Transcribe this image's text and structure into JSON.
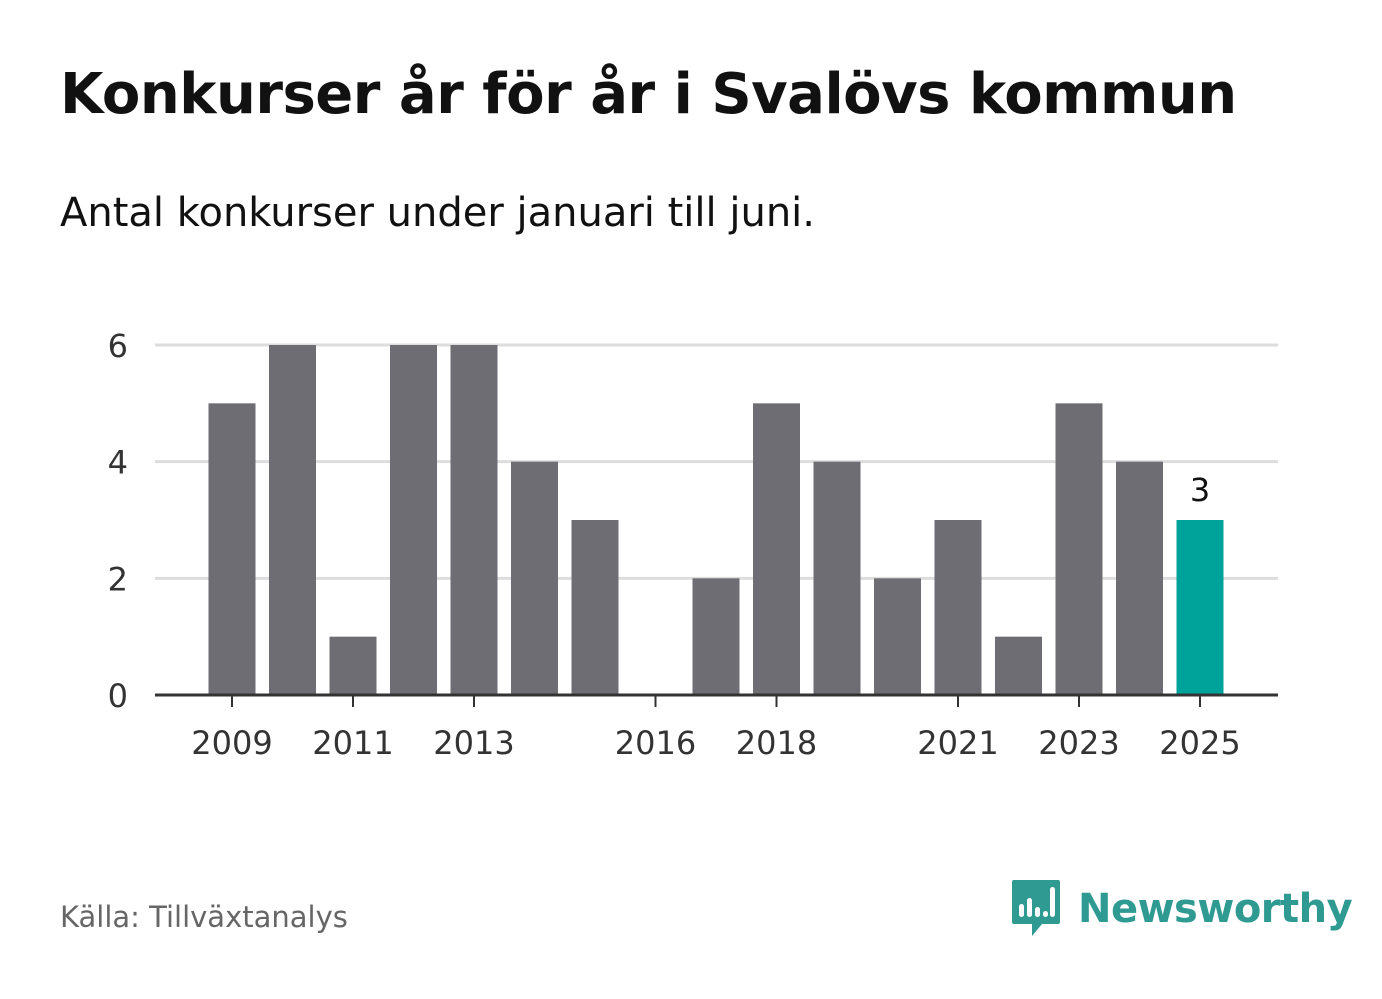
{
  "header": {
    "title": "Konkurser år för år i Svalövs kommun",
    "subtitle": "Antal konkurser under januari till juni."
  },
  "footer": {
    "source": "Källa: Tillväxtanalys",
    "brand": "Newsworthy"
  },
  "colors": {
    "bar": "#6e6d73",
    "highlight": "#00a39a",
    "grid": "#dddddd",
    "axis": "#333333",
    "brand": "#2e9a91"
  },
  "chart_data": {
    "type": "bar",
    "categories": [
      "2009",
      "2010",
      "2011",
      "2012",
      "2013",
      "2014",
      "2015",
      "2016",
      "2017",
      "2018",
      "2019",
      "2020",
      "2021",
      "2022",
      "2023",
      "2024",
      "2025"
    ],
    "values": [
      5,
      6,
      1,
      6,
      6,
      4,
      3,
      0,
      2,
      5,
      4,
      2,
      3,
      1,
      5,
      4,
      3
    ],
    "xticks": [
      "2009",
      "2011",
      "2013",
      "2016",
      "2018",
      "2021",
      "2023",
      "2025"
    ],
    "yticks": [
      0,
      2,
      4,
      6
    ],
    "ylim": [
      0,
      6
    ],
    "highlight_category": "2025",
    "data_labels": [
      {
        "category": "2025",
        "text": "3"
      }
    ],
    "grid": true,
    "legend": "none"
  }
}
